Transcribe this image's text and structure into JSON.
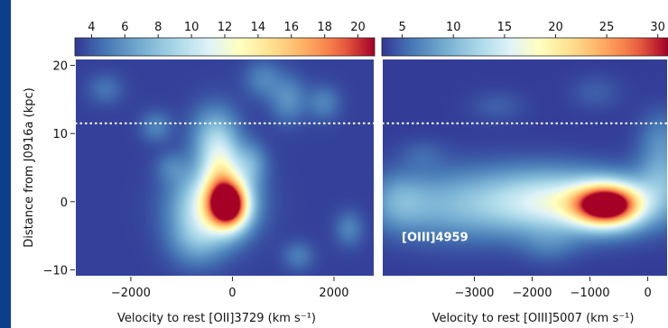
{
  "theme": {
    "slide_background": "#0b3f8c",
    "panel_fill": "#3d4aa3",
    "figure_background": "#ffffff",
    "colormap": "RdYlBu_r"
  },
  "chart_data": [
    {
      "type": "heatmap",
      "title": "",
      "xlabel": "Velocity to rest [OII]3729 (km s⁻¹)",
      "ylabel": "Distance from J0916a (kpc)",
      "x_ticks": [
        -2000,
        0,
        2000
      ],
      "x_tick_labels": [
        "−2000",
        "0",
        "2000"
      ],
      "xlim": [
        -3100,
        2800
      ],
      "y_ticks": [
        -10,
        0,
        10,
        20
      ],
      "y_tick_labels": [
        "−10",
        "0",
        "10",
        "20"
      ],
      "ylim": [
        -11,
        21
      ],
      "colorbar": {
        "orientation": "horizontal",
        "position": "top",
        "ticks": [
          4,
          6,
          8,
          10,
          12,
          14,
          16,
          18,
          20
        ],
        "tick_labels": [
          "4",
          "6",
          "8",
          "10",
          "12",
          "14",
          "16",
          "18",
          "20"
        ],
        "range": [
          3,
          21
        ]
      },
      "dotted_line_y": 11.5,
      "panel_label": "",
      "blobs": [
        {
          "x": -80,
          "y": -0.5,
          "sx": 260,
          "sy": 2.3,
          "peak": 20
        },
        {
          "x": -380,
          "y": -0.3,
          "sx": 520,
          "sy": 3.6,
          "peak": 11
        },
        {
          "x": -220,
          "y": 4.5,
          "sx": 260,
          "sy": 3.4,
          "peak": 9
        },
        {
          "x": -350,
          "y": 9.5,
          "sx": 320,
          "sy": 3.2,
          "peak": 7
        },
        {
          "x": -700,
          "y": -5.5,
          "sx": 380,
          "sy": 2.8,
          "peak": 6
        },
        {
          "x": 350,
          "y": 5.5,
          "sx": 230,
          "sy": 2.2,
          "peak": 6
        },
        {
          "x": 1100,
          "y": 15,
          "sx": 250,
          "sy": 2.4,
          "peak": 5.5
        },
        {
          "x": 600,
          "y": 18,
          "sx": 260,
          "sy": 2.0,
          "peak": 5
        },
        {
          "x": -1500,
          "y": 11,
          "sx": 220,
          "sy": 1.6,
          "peak": 5
        },
        {
          "x": 1800,
          "y": 14.5,
          "sx": 230,
          "sy": 1.8,
          "peak": 5
        },
        {
          "x": -2500,
          "y": 16.5,
          "sx": 250,
          "sy": 1.6,
          "peak": 4.5
        },
        {
          "x": 2300,
          "y": -4,
          "sx": 200,
          "sy": 1.8,
          "peak": 5
        },
        {
          "x": 1300,
          "y": -8,
          "sx": 220,
          "sy": 1.5,
          "peak": 4.8
        },
        {
          "x": -1200,
          "y": 5,
          "sx": 220,
          "sy": 1.6,
          "peak": 4.5
        }
      ]
    },
    {
      "type": "heatmap",
      "title": "",
      "xlabel": "Velocity to rest [OIII]5007 (km s⁻¹)",
      "ylabel": "",
      "x_ticks": [
        -3000,
        -2000,
        -1000,
        0
      ],
      "x_tick_labels": [
        "−3000",
        "−2000",
        "−1000",
        "0"
      ],
      "xlim": [
        -4600,
        350
      ],
      "y_ticks": [
        -10,
        0,
        10,
        20
      ],
      "ylim": [
        -11,
        21
      ],
      "colorbar": {
        "orientation": "horizontal",
        "position": "top",
        "ticks": [
          5,
          10,
          15,
          20,
          25,
          30
        ],
        "tick_labels": [
          "5",
          "10",
          "15",
          "20",
          "25",
          "30"
        ],
        "range": [
          3,
          31
        ]
      },
      "dotted_line_y": 11.5,
      "panel_label": "[OIII]4959",
      "blobs": [
        {
          "x": -700,
          "y": -0.5,
          "sx": 380,
          "sy": 2.0,
          "peak": 30
        },
        {
          "x": -1000,
          "y": -0.3,
          "sx": 900,
          "sy": 3.0,
          "peak": 13
        },
        {
          "x": -2000,
          "y": 0.2,
          "sx": 750,
          "sy": 3.4,
          "peak": 9
        },
        {
          "x": -3400,
          "y": -0.5,
          "sx": 800,
          "sy": 3.6,
          "peak": 8.5
        },
        {
          "x": -4300,
          "y": 0,
          "sx": 350,
          "sy": 2.8,
          "peak": 7
        },
        {
          "x": 250,
          "y": 3.5,
          "sx": 300,
          "sy": 3.2,
          "peak": 8
        },
        {
          "x": 250,
          "y": 9.5,
          "sx": 280,
          "sy": 2.8,
          "peak": 6
        },
        {
          "x": -1700,
          "y": -6.5,
          "sx": 330,
          "sy": 1.8,
          "peak": 5
        },
        {
          "x": -2600,
          "y": 14,
          "sx": 330,
          "sy": 1.6,
          "peak": 4.5
        },
        {
          "x": -900,
          "y": 16,
          "sx": 300,
          "sy": 1.8,
          "peak": 4.5
        },
        {
          "x": -3900,
          "y": 7,
          "sx": 280,
          "sy": 1.5,
          "peak": 4.5
        }
      ]
    }
  ]
}
